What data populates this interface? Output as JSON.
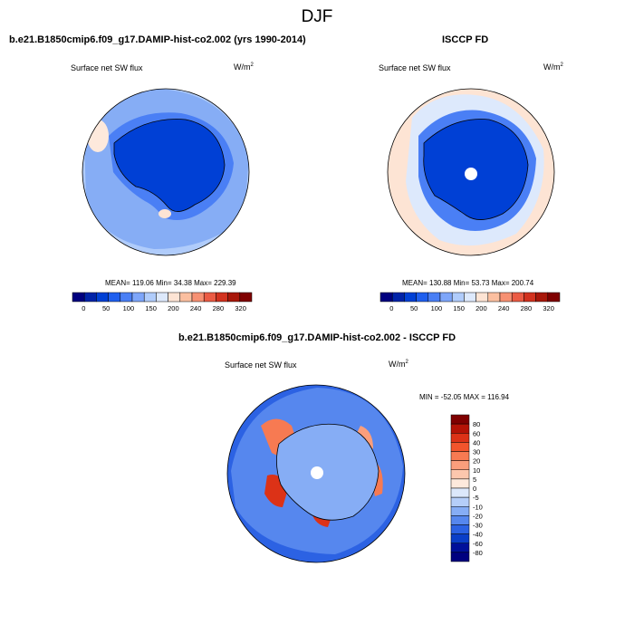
{
  "figure": {
    "title": "DJF"
  },
  "panels": {
    "model": {
      "title": "b.e21.B1850cmip6.f09_g17.DAMIP-hist-co2.002 (yrs 1990-2014)",
      "variable": "Surface net SW flux",
      "units": "W/m",
      "units_exp": "2",
      "stats": "MEAN= 119.06  Min=  34.38  Max= 229.39",
      "colorbar_ticks": [
        "0",
        "50",
        "100",
        "150",
        "200",
        "240",
        "280",
        "320"
      ]
    },
    "obs": {
      "title": "ISCCP FD",
      "variable": "Surface net SW flux",
      "units": "W/m",
      "units_exp": "2",
      "stats": "MEAN= 130.88  Min=  53.73  Max= 200.74",
      "colorbar_ticks": [
        "0",
        "50",
        "100",
        "150",
        "200",
        "240",
        "280",
        "320"
      ]
    },
    "diff": {
      "title": "b.e21.B1850cmip6.f09_g17.DAMIP-hist-co2.002 - ISCCP FD",
      "variable": "Surface net SW flux",
      "units": "W/m",
      "units_exp": "2",
      "stats": "MIN = -52.05 MAX = 116.94",
      "colorbar_ticks": [
        "80",
        "60",
        "40",
        "30",
        "20",
        "10",
        "5",
        "0",
        "-5",
        "-10",
        "-20",
        "-30",
        "-40",
        "-60",
        "-80"
      ]
    }
  },
  "colors": {
    "abs_scale": [
      "#00007f",
      "#0023a8",
      "#0040d5",
      "#1f5fef",
      "#4a7ff5",
      "#7ea6fa",
      "#b0ccfb",
      "#dde9fc",
      "#fde4d4",
      "#fbbfa0",
      "#f79173",
      "#eb5b44",
      "#d2321f",
      "#a8170a",
      "#7f0000"
    ],
    "diff_scale": [
      "#7f0000",
      "#b41306",
      "#dc3217",
      "#f2542c",
      "#f77a52",
      "#fa9e7c",
      "#fcc7ad",
      "#fde9dc",
      "#dce8fb",
      "#b5cef9",
      "#86adf5",
      "#5687ee",
      "#2c62e3",
      "#0a3ec8",
      "#00109a",
      "#00007f"
    ]
  }
}
